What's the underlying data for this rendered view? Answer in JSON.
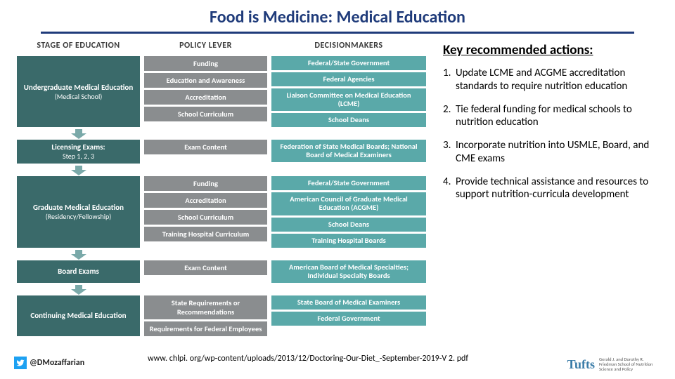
{
  "title": "Food is Medicine:  Medical Education",
  "colors": {
    "title_color": "#1f3b7a",
    "stage_bg": "#3a6a6a",
    "lever_bg": "#8a8d8f",
    "dm_bg": "#5aa9a9",
    "arrow_fill": "#7aa9a9",
    "background": "#ffffff"
  },
  "columns": {
    "stage": "STAGE OF EDUCATION",
    "lever": "POLICY LEVER",
    "dm": "DECISIONMAKERS"
  },
  "flow": [
    {
      "stage": "Undergraduate Medical Education",
      "stage_sub": "(Medical School)",
      "levers": [
        "Funding",
        "Education and Awareness",
        "Accreditation",
        "School Curriculum"
      ],
      "dms": [
        "Federal/State Government",
        "Federal Agencies",
        "Liaison Committee on Medical Education (LCME)",
        "School Deans"
      ]
    },
    {
      "stage": "Licensing Exams:",
      "stage_sub": "Step 1, 2, 3",
      "levers": [
        "Exam Content"
      ],
      "dms": [
        "Federation of State Medical Boards; National Board of Medical Examiners"
      ]
    },
    {
      "stage": "Graduate Medical Education",
      "stage_sub": "(Residency/Fellowship)",
      "levers": [
        "Funding",
        "Accreditation",
        "School Curriculum",
        "Training Hospital Curriculum"
      ],
      "dms": [
        "Federal/State Government",
        "American Council of Graduate Medical Education (ACGME)",
        "School Deans",
        "Training Hospital Boards"
      ]
    },
    {
      "stage": "Board Exams",
      "stage_sub": "",
      "levers": [
        "Exam Content"
      ],
      "dms": [
        "American Board of Medical Specialties; Individual Specialty Boards"
      ]
    },
    {
      "stage": "Continuing Medical Education",
      "stage_sub": "",
      "levers": [
        "State Requirements or Recommendations",
        "Requirements for Federal Employees"
      ],
      "dms": [
        "State Board of Medical Examiners",
        "Federal Government"
      ]
    }
  ],
  "key_title": "Key recommended actions:",
  "actions": [
    "Update LCME and ACGME accreditation standards to require nutrition education",
    "Tie federal funding for medical schools to nutrition education",
    "Incorporate nutrition into USMLE, Board, and CME exams",
    "Provide technical assistance and resources to support nutrition-curricula development"
  ],
  "citation": "www. chlpi. org/wp-content/uploads/2013/12/Doctoring-Our-Diet_-September-2019-V 2. pdf",
  "twitter_handle": "@DMozaffarian",
  "logo": {
    "brand": "Tufts",
    "sub": "Gerald J. and Dorothy R. Friedman School of Nutrition Science and Policy"
  }
}
